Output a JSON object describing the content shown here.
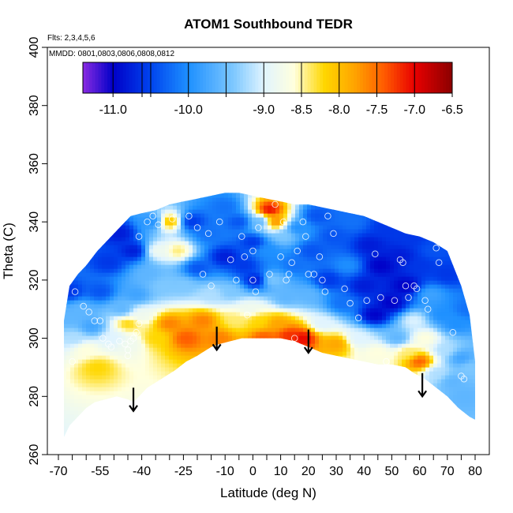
{
  "chart_data": {
    "type": "heatmap",
    "title": "ATOM1 Southbound TEDR",
    "annotations": [
      "Flts: 2,3,4,5,6",
      "MMDD: 0801,0803,0806,0808,0812"
    ],
    "xlabel": "Latitude (deg N)",
    "ylabel": "Theta (C)",
    "xlim": [
      -70,
      80
    ],
    "ylim": [
      260,
      400
    ],
    "x_ticks": [
      -70,
      -65,
      -60,
      -55,
      -50,
      -45,
      -40,
      -35,
      -30,
      -25,
      -20,
      -15,
      -10,
      -5,
      0,
      5,
      10,
      15,
      20,
      25,
      30,
      35,
      40,
      45,
      50,
      55,
      60,
      65,
      70,
      75,
      80
    ],
    "x_tick_labels": [
      "-70",
      "",
      "",
      "-55",
      "",
      "",
      "-40",
      "",
      "",
      "-25",
      "",
      "",
      "-10",
      "",
      "0",
      "",
      "10",
      "",
      "20",
      "",
      "30",
      "",
      "40",
      "",
      "50",
      "",
      "60",
      "",
      "70",
      "",
      "80"
    ],
    "y_ticks": [
      260,
      280,
      300,
      320,
      340,
      360,
      380,
      400
    ],
    "y_tick_labels": [
      "260",
      "280",
      "300",
      "320",
      "340",
      "360",
      "380",
      "400"
    ],
    "colorbar": {
      "ticks": [
        -11.0,
        -10.0,
        -9.0,
        -8.5,
        -8.0,
        -7.5,
        -7.0,
        -6.5
      ],
      "tick_labels": [
        "-11.0",
        "-10.0",
        "-9.0",
        "-8.5",
        "-8.0",
        "-7.5",
        "-7.0",
        "-6.5"
      ],
      "range": [
        -11.4,
        -6.5
      ],
      "stops": [
        {
          "v": -11.4,
          "color": "#8a2be2"
        },
        {
          "v": -11.0,
          "color": "#0000c8"
        },
        {
          "v": -10.5,
          "color": "#0044ee"
        },
        {
          "v": -10.0,
          "color": "#1e90ff"
        },
        {
          "v": -9.4,
          "color": "#7ec8ff"
        },
        {
          "v": -9.0,
          "color": "#e0f4ff"
        },
        {
          "v": -8.6,
          "color": "#ffffdd"
        },
        {
          "v": -8.2,
          "color": "#ffd700"
        },
        {
          "v": -7.8,
          "color": "#ffa500"
        },
        {
          "v": -7.4,
          "color": "#ff5a00"
        },
        {
          "v": -7.0,
          "color": "#e80000"
        },
        {
          "v": -6.5,
          "color": "#8b0000"
        }
      ]
    },
    "domain_upper": [
      [
        -68,
        306
      ],
      [
        -66,
        318
      ],
      [
        -63,
        322
      ],
      [
        -60,
        325
      ],
      [
        -56,
        330
      ],
      [
        -52,
        334
      ],
      [
        -48,
        338
      ],
      [
        -44,
        342
      ],
      [
        -40,
        343
      ],
      [
        -35,
        344
      ],
      [
        -30,
        346
      ],
      [
        -25,
        347
      ],
      [
        -20,
        348
      ],
      [
        -15,
        349
      ],
      [
        -10,
        350
      ],
      [
        -5,
        350
      ],
      [
        0,
        349
      ],
      [
        5,
        348
      ],
      [
        10,
        347
      ],
      [
        15,
        346
      ],
      [
        20,
        346
      ],
      [
        25,
        345
      ],
      [
        30,
        344
      ],
      [
        35,
        343
      ],
      [
        40,
        342
      ],
      [
        45,
        340
      ],
      [
        50,
        338
      ],
      [
        55,
        336
      ],
      [
        60,
        335
      ],
      [
        65,
        333
      ],
      [
        70,
        330
      ],
      [
        75,
        318
      ],
      [
        78,
        308
      ],
      [
        79,
        300
      ],
      [
        80,
        292
      ]
    ],
    "domain_lower": [
      [
        -68,
        266
      ],
      [
        -66,
        270
      ],
      [
        -63,
        273
      ],
      [
        -60,
        276
      ],
      [
        -57,
        278
      ],
      [
        -53,
        279
      ],
      [
        -49,
        280
      ],
      [
        -45,
        279
      ],
      [
        -43,
        278
      ],
      [
        -38,
        283
      ],
      [
        -33,
        286
      ],
      [
        -28,
        289
      ],
      [
        -24,
        292
      ],
      [
        -20,
        294
      ],
      [
        -15,
        297
      ],
      [
        -12,
        298
      ],
      [
        -8,
        299
      ],
      [
        -4,
        300
      ],
      [
        0,
        300
      ],
      [
        5,
        300
      ],
      [
        10,
        300
      ],
      [
        15,
        299
      ],
      [
        20,
        297
      ],
      [
        25,
        295
      ],
      [
        30,
        294
      ],
      [
        35,
        293
      ],
      [
        40,
        292
      ],
      [
        45,
        291
      ],
      [
        50,
        291
      ],
      [
        55,
        290
      ],
      [
        58,
        288
      ],
      [
        62,
        286
      ],
      [
        66,
        283
      ],
      [
        70,
        280
      ],
      [
        74,
        276
      ],
      [
        78,
        273
      ],
      [
        80,
        272
      ]
    ],
    "field_points": [
      [
        -67,
        307,
        -9.6
      ],
      [
        -66,
        316,
        -10.6
      ],
      [
        -64,
        300,
        -9.2
      ],
      [
        -62,
        310,
        -9.6
      ],
      [
        -60,
        296,
        -8.6
      ],
      [
        -58,
        304,
        -9.8
      ],
      [
        -56,
        290,
        -8.2
      ],
      [
        -55,
        316,
        -10.4
      ],
      [
        -52,
        326,
        -10.6
      ],
      [
        -50,
        300,
        -9.0
      ],
      [
        -48,
        336,
        -10.8
      ],
      [
        -47,
        310,
        -9.6
      ],
      [
        -45,
        305,
        -8.2
      ],
      [
        -44,
        298,
        -8.8
      ],
      [
        -43,
        330,
        -10.8
      ],
      [
        -42,
        315,
        -9.8
      ],
      [
        -40,
        308,
        -8.8
      ],
      [
        -38,
        322,
        -9.6
      ],
      [
        -36,
        340,
        -10.0
      ],
      [
        -35,
        300,
        -8.2
      ],
      [
        -34,
        330,
        -8.8
      ],
      [
        -32,
        318,
        -9.4
      ],
      [
        -30,
        340,
        -8.0
      ],
      [
        -30,
        305,
        -7.6
      ],
      [
        -27,
        330,
        -8.4
      ],
      [
        -25,
        318,
        -9.4
      ],
      [
        -24,
        300,
        -7.4
      ],
      [
        -22,
        340,
        -10.6
      ],
      [
        -20,
        324,
        -10.4
      ],
      [
        -18,
        306,
        -7.6
      ],
      [
        -16,
        336,
        -10.2
      ],
      [
        -15,
        315,
        -9.2
      ],
      [
        -12,
        300,
        -7.6
      ],
      [
        -10,
        345,
        -10.2
      ],
      [
        -10,
        328,
        -10.8
      ],
      [
        -8,
        316,
        -9.4
      ],
      [
        -6,
        306,
        -8.4
      ],
      [
        -5,
        340,
        -10.4
      ],
      [
        -3,
        325,
        -10.6
      ],
      [
        -1,
        310,
        -8.8
      ],
      [
        0,
        333,
        -10.6
      ],
      [
        1,
        320,
        -10.8
      ],
      [
        2,
        306,
        -8.2
      ],
      [
        3,
        340,
        -9.6
      ],
      [
        4,
        300,
        -7.4
      ],
      [
        5,
        330,
        -10.0
      ],
      [
        6,
        344,
        -7.0
      ],
      [
        7,
        320,
        -9.4
      ],
      [
        8,
        340,
        -7.6
      ],
      [
        9,
        305,
        -7.8
      ],
      [
        11,
        335,
        -9.4
      ],
      [
        12,
        314,
        -9.6
      ],
      [
        13,
        301,
        -7.2
      ],
      [
        15,
        325,
        -10.2
      ],
      [
        16,
        338,
        -10.0
      ],
      [
        18,
        300,
        -7.0
      ],
      [
        20,
        315,
        -9.6
      ],
      [
        21,
        330,
        -10.4
      ],
      [
        23,
        342,
        -10.4
      ],
      [
        25,
        305,
        -9.0
      ],
      [
        27,
        320,
        -10.6
      ],
      [
        29,
        335,
        -10.4
      ],
      [
        30,
        298,
        -7.8
      ],
      [
        32,
        312,
        -10.2
      ],
      [
        34,
        325,
        -10.0
      ],
      [
        36,
        340,
        -10.2
      ],
      [
        38,
        300,
        -9.0
      ],
      [
        40,
        318,
        -10.8
      ],
      [
        42,
        332,
        -10.8
      ],
      [
        44,
        308,
        -11.0
      ],
      [
        45,
        295,
        -8.6
      ],
      [
        46,
        325,
        -11.0
      ],
      [
        48,
        338,
        -10.6
      ],
      [
        50,
        312,
        -11.0
      ],
      [
        52,
        300,
        -9.6
      ],
      [
        53,
        328,
        -10.8
      ],
      [
        55,
        318,
        -11.0
      ],
      [
        56,
        295,
        -8.4
      ],
      [
        57,
        335,
        -10.6
      ],
      [
        58,
        306,
        -9.0
      ],
      [
        60,
        292,
        -7.4
      ],
      [
        60,
        325,
        -10.6
      ],
      [
        62,
        300,
        -8.6
      ],
      [
        64,
        315,
        -9.8
      ],
      [
        65,
        330,
        -10.4
      ],
      [
        66,
        288,
        -9.2
      ],
      [
        68,
        308,
        -10.0
      ],
      [
        69,
        296,
        -9.2
      ],
      [
        70,
        322,
        -10.6
      ],
      [
        72,
        285,
        -9.6
      ],
      [
        73,
        305,
        -10.0
      ],
      [
        75,
        293,
        -9.8
      ],
      [
        76,
        280,
        -9.6
      ],
      [
        77,
        310,
        -10.2
      ],
      [
        78,
        290,
        -9.4
      ]
    ],
    "observations": [
      [
        -65,
        292
      ],
      [
        -64,
        316
      ],
      [
        -61,
        311
      ],
      [
        -59,
        309
      ],
      [
        -57,
        306
      ],
      [
        -55,
        306
      ],
      [
        -54,
        300
      ],
      [
        -52,
        298
      ],
      [
        -51,
        297
      ],
      [
        -48,
        299
      ],
      [
        -46,
        298
      ],
      [
        -45,
        294
      ],
      [
        -45,
        296
      ],
      [
        -44,
        299
      ],
      [
        -43,
        300
      ],
      [
        -42,
        302
      ],
      [
        -41,
        305
      ],
      [
        -41,
        335
      ],
      [
        -38,
        340
      ],
      [
        -36,
        342
      ],
      [
        -34,
        339
      ],
      [
        -29,
        341
      ],
      [
        -23,
        342
      ],
      [
        -20,
        338
      ],
      [
        -18,
        322
      ],
      [
        -16,
        336
      ],
      [
        -15,
        318
      ],
      [
        -12,
        340
      ],
      [
        -8,
        327
      ],
      [
        -6,
        320
      ],
      [
        -4,
        335
      ],
      [
        -3,
        328
      ],
      [
        -2,
        308
      ],
      [
        0,
        330
      ],
      [
        0,
        320
      ],
      [
        1,
        316
      ],
      [
        2,
        338
      ],
      [
        3,
        298
      ],
      [
        6,
        322
      ],
      [
        8,
        346
      ],
      [
        10,
        328
      ],
      [
        11,
        340
      ],
      [
        12,
        320
      ],
      [
        13,
        322
      ],
      [
        14,
        326
      ],
      [
        15,
        300
      ],
      [
        16,
        330
      ],
      [
        18,
        340
      ],
      [
        19,
        335
      ],
      [
        20,
        322
      ],
      [
        22,
        322
      ],
      [
        24,
        328
      ],
      [
        25,
        320
      ],
      [
        26,
        316
      ],
      [
        27,
        342
      ],
      [
        29,
        336
      ],
      [
        33,
        317
      ],
      [
        35,
        312
      ],
      [
        38,
        307
      ],
      [
        41,
        313
      ],
      [
        44,
        329
      ],
      [
        46,
        314
      ],
      [
        48,
        292
      ],
      [
        51,
        313
      ],
      [
        53,
        327
      ],
      [
        54,
        326
      ],
      [
        55,
        318
      ],
      [
        56,
        314
      ],
      [
        58,
        318
      ],
      [
        59,
        317
      ],
      [
        62,
        313
      ],
      [
        63,
        310
      ],
      [
        66,
        331
      ],
      [
        67,
        326
      ],
      [
        72,
        302
      ],
      [
        75,
        287
      ],
      [
        76,
        286
      ]
    ],
    "arrows": [
      {
        "lat": -43,
        "from": 283,
        "to": 275
      },
      {
        "lat": -13,
        "from": 304,
        "to": 296
      },
      {
        "lat": 20,
        "from": 303,
        "to": 295
      },
      {
        "lat": 61,
        "from": 288,
        "to": 280
      }
    ]
  }
}
